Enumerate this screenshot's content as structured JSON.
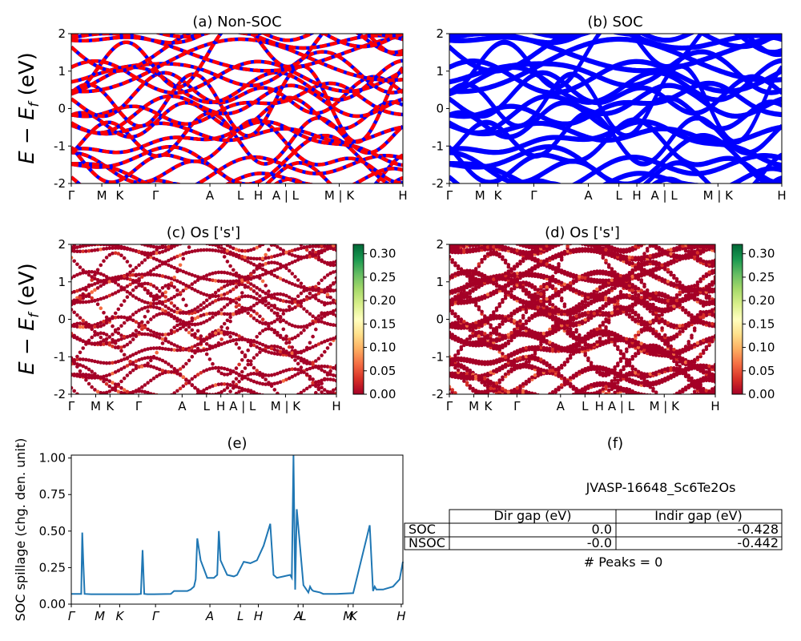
{
  "kpath": {
    "labels": [
      "Γ",
      "M",
      "K",
      "Γ",
      "A",
      "L",
      "H",
      "A | L",
      "M | K",
      "H"
    ],
    "frac": [
      0.0,
      0.092,
      0.146,
      0.254,
      0.418,
      0.51,
      0.564,
      0.646,
      0.808,
      1.0
    ]
  },
  "spillage_kpath": {
    "labels": [
      "Γ",
      "M",
      "K",
      "Γ",
      "A",
      "L",
      "H",
      "A",
      "L",
      "M",
      "K",
      "H"
    ],
    "frac": [
      0.0,
      0.086,
      0.146,
      0.254,
      0.418,
      0.51,
      0.564,
      0.684,
      0.699,
      0.835,
      0.85,
      0.995
    ]
  },
  "colors": {
    "nonsoc_base": "#0000ff",
    "nonsoc_dash": "#ff0000",
    "soc": "#0000ff",
    "spillage": "#1f77b4",
    "colormap": [
      "#a50026",
      "#d73027",
      "#f46d43",
      "#fdae61",
      "#fee08b",
      "#ffffbf",
      "#d9ef8b",
      "#a6d96a",
      "#66bd63",
      "#1a9850",
      "#006837"
    ]
  },
  "chart_data": [
    {
      "id": "a",
      "type": "line",
      "title": "(a) Non-SOC",
      "ylabel": "E − E_f (eV)",
      "ylim": [
        -2,
        2
      ],
      "yticks": [
        -2,
        -1,
        0,
        1,
        2
      ],
      "style": "dashed red over blue"
    },
    {
      "id": "b",
      "type": "line",
      "title": "(b) SOC",
      "ylim": [
        -2,
        2
      ],
      "yticks": [
        -2,
        -1,
        0,
        1,
        2
      ],
      "style": "solid blue"
    },
    {
      "id": "c",
      "type": "scatter",
      "title": "(c)  Os ['s']",
      "ylabel": "E − E_f (eV)",
      "ylim": [
        -2,
        2
      ],
      "yticks": [
        -2,
        -1,
        0,
        1,
        2
      ],
      "colorbar_ticks": [
        "0.00",
        "0.05",
        "0.10",
        "0.15",
        "0.20",
        "0.25",
        "0.30"
      ],
      "colorbar_range": [
        0,
        0.32
      ]
    },
    {
      "id": "d",
      "type": "scatter",
      "title": "(d) Os ['s']",
      "ylim": [
        -2,
        2
      ],
      "yticks": [
        -2,
        -1,
        0,
        1,
        2
      ],
      "colorbar_ticks": [
        "0.00",
        "0.05",
        "0.10",
        "0.15",
        "0.20",
        "0.25",
        "0.30"
      ],
      "colorbar_range": [
        0,
        0.32
      ]
    },
    {
      "id": "e",
      "type": "line",
      "title": "(e)",
      "ylabel": "SOC spillage (chg. den. unit)",
      "ylim": [
        0,
        1.02
      ],
      "yticks": [
        "0.00",
        "0.25",
        "0.50",
        "0.75",
        "1.00"
      ],
      "x": [
        0.0,
        0.02,
        0.03,
        0.033,
        0.036,
        0.04,
        0.06,
        0.1,
        0.2,
        0.21,
        0.215,
        0.22,
        0.23,
        0.25,
        0.3,
        0.31,
        0.35,
        0.36,
        0.37,
        0.375,
        0.38,
        0.39,
        0.41,
        0.43,
        0.44,
        0.445,
        0.45,
        0.46,
        0.47,
        0.49,
        0.5,
        0.52,
        0.54,
        0.56,
        0.58,
        0.6,
        0.61,
        0.62,
        0.64,
        0.66,
        0.665,
        0.67,
        0.675,
        0.68,
        0.7,
        0.715,
        0.72,
        0.725,
        0.73,
        0.74,
        0.75,
        0.76,
        0.8,
        0.85,
        0.9,
        0.91,
        0.915,
        0.92,
        0.925,
        0.93,
        0.94,
        0.97,
        0.99,
        1.0
      ],
      "values": [
        0.07,
        0.07,
        0.07,
        0.49,
        0.3,
        0.07,
        0.068,
        0.068,
        0.068,
        0.07,
        0.37,
        0.07,
        0.068,
        0.068,
        0.07,
        0.09,
        0.09,
        0.1,
        0.12,
        0.17,
        0.45,
        0.3,
        0.18,
        0.18,
        0.2,
        0.5,
        0.3,
        0.25,
        0.2,
        0.19,
        0.2,
        0.29,
        0.28,
        0.3,
        0.4,
        0.55,
        0.2,
        0.18,
        0.19,
        0.2,
        0.18,
        1.02,
        0.1,
        0.65,
        0.13,
        0.08,
        0.12,
        0.1,
        0.09,
        0.085,
        0.08,
        0.07,
        0.07,
        0.075,
        0.54,
        0.09,
        0.12,
        0.1,
        0.1,
        0.1,
        0.1,
        0.12,
        0.17,
        0.29
      ]
    }
  ],
  "panel_f": {
    "title": "(f)",
    "jid": "JVASP-16648_Sc6Te2Os",
    "header": [
      "Dir gap (eV)",
      "Indir gap (eV)"
    ],
    "rows": [
      {
        "label": "SOC",
        "dir": "0.0",
        "indir": "-0.428"
      },
      {
        "label": "NSOC",
        "dir": "-0.0",
        "indir": "-0.442"
      }
    ],
    "peaks": "# Peaks = 0"
  }
}
